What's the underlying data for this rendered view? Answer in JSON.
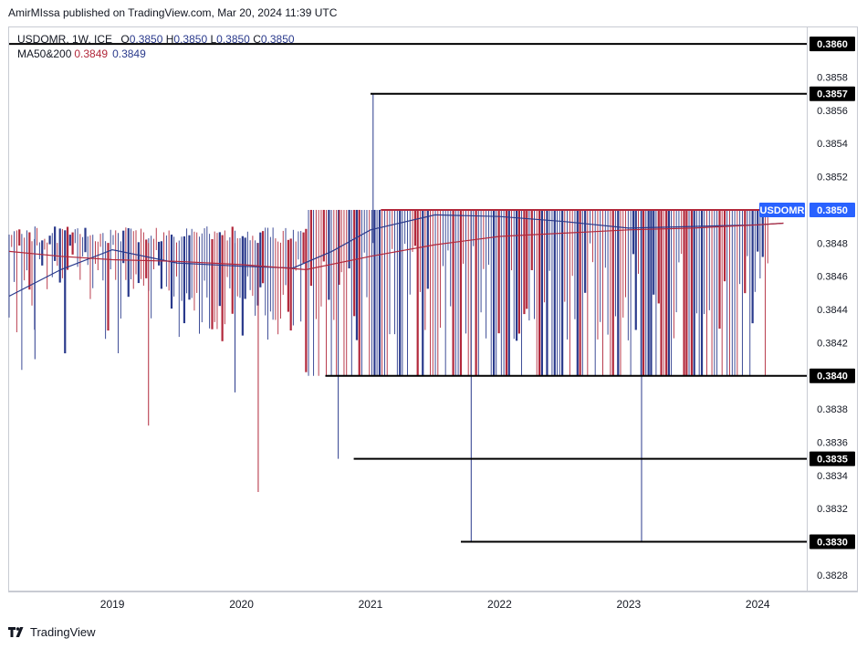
{
  "header": {
    "publisher": "AmirMIssa published on TradingView.com, Mar 20, 2024 11:39 UTC"
  },
  "legend": {
    "symbol_line": "USDOMR, 1W, ICE",
    "open_label": "O",
    "open": "0.3850",
    "high_label": "H",
    "high": "0.3850",
    "low_label": "L",
    "low": "0.3850",
    "close_label": "C",
    "close": "0.3850",
    "ma_label": "MA50&200",
    "ma50": "0.3849",
    "ma200": "0.3849"
  },
  "footer": {
    "brand": "TradingView"
  },
  "colors": {
    "up": "#2a3a8c",
    "down": "#b2283b",
    "tag_blue": "#2962ff",
    "level": "#000000"
  },
  "chart_data": {
    "type": "candlestick",
    "title": "USDOMR, 1W, ICE",
    "symbol_tag": "USDOMR",
    "last_price": 0.385,
    "ylim": [
      0.3827,
      0.3861
    ],
    "y_ticks": [
      "0.3828",
      "0.3832",
      "0.3834",
      "0.3836",
      "0.3838",
      "0.3842",
      "0.3844",
      "0.3846",
      "0.3848",
      "0.3852",
      "0.3854",
      "0.3856",
      "0.3858"
    ],
    "y_tick_values": [
      0.3828,
      0.3832,
      0.3834,
      0.3836,
      0.3838,
      0.3842,
      0.3844,
      0.3846,
      0.3848,
      0.3852,
      0.3854,
      0.3856,
      0.3858
    ],
    "x_ticks": [
      "2019",
      "2020",
      "2021",
      "2022",
      "2023",
      "2024"
    ],
    "x_tick_values": [
      2019.0,
      2020.0,
      2021.0,
      2022.0,
      2023.0,
      2024.0
    ],
    "xlim": [
      2018.2,
      2024.38
    ],
    "horizontal_levels": [
      {
        "label": "0.3860",
        "value": 0.386,
        "from": 2018.2,
        "to": 2024.38,
        "color": "#000000"
      },
      {
        "label": "0.3857",
        "value": 0.3857,
        "from": 2021.0,
        "to": 2024.38,
        "color": "#000000"
      },
      {
        "label": "0.3840",
        "value": 0.384,
        "from": 2020.65,
        "to": 2024.38,
        "color": "#000000"
      },
      {
        "label": "0.3835",
        "value": 0.3835,
        "from": 2020.87,
        "to": 2024.38,
        "color": "#000000"
      },
      {
        "label": "0.3830",
        "value": 0.383,
        "from": 2021.7,
        "to": 2024.38,
        "color": "#000000"
      },
      {
        "label": "",
        "value": 0.385,
        "from": 2021.08,
        "to": 2024.05,
        "color": "#b2283b"
      }
    ],
    "wick_spikes": [
      {
        "x": 2018.4,
        "high": 0.3849,
        "low": 0.3841,
        "dir": "up"
      },
      {
        "x": 2019.28,
        "high": 0.3848,
        "low": 0.3837,
        "dir": "down"
      },
      {
        "x": 2019.95,
        "high": 0.3848,
        "low": 0.3839,
        "dir": "up"
      },
      {
        "x": 2020.13,
        "high": 0.3848,
        "low": 0.3833,
        "dir": "down"
      },
      {
        "x": 2020.75,
        "high": 0.385,
        "low": 0.3835,
        "dir": "up"
      },
      {
        "x": 2021.02,
        "high": 0.3857,
        "low": 0.3848,
        "dir": "up"
      },
      {
        "x": 2021.78,
        "high": 0.385,
        "low": 0.383,
        "dir": "up"
      },
      {
        "x": 2023.1,
        "high": 0.385,
        "low": 0.383,
        "dir": "up"
      }
    ],
    "series": [
      {
        "name": "MA50",
        "color": "#2a3a8c",
        "x": [
          2018.2,
          2018.6,
          2019.0,
          2019.5,
          2020.0,
          2020.4,
          2020.7,
          2021.0,
          2021.5,
          2022.0,
          2022.5,
          2023.0,
          2023.5,
          2024.0,
          2024.2
        ],
        "y": [
          0.38448,
          0.38464,
          0.38476,
          0.38468,
          0.38466,
          0.38465,
          0.38475,
          0.38488,
          0.38497,
          0.38496,
          0.38493,
          0.38489,
          0.3849,
          0.38491,
          0.38492
        ]
      },
      {
        "name": "MA200",
        "color": "#b2283b",
        "x": [
          2018.2,
          2018.6,
          2019.0,
          2019.5,
          2020.0,
          2020.5,
          2021.0,
          2021.5,
          2022.0,
          2022.5,
          2023.0,
          2023.5,
          2024.0,
          2024.2
        ],
        "y": [
          0.38475,
          0.38472,
          0.3847,
          0.38469,
          0.38467,
          0.38464,
          0.38472,
          0.38479,
          0.38484,
          0.38486,
          0.38488,
          0.38489,
          0.38491,
          0.38492
        ]
      }
    ]
  }
}
